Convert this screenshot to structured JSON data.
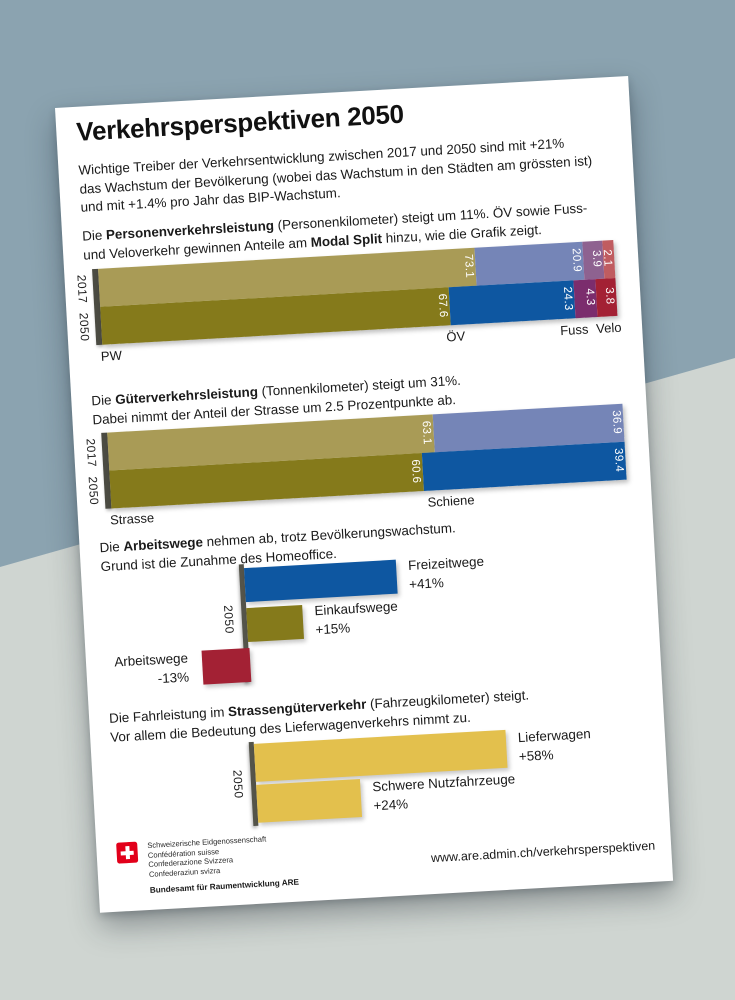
{
  "scene": {
    "background_top_color": "#8ba3b0",
    "background_bottom_color": "#cfd5d1",
    "paper_color": "#ffffff"
  },
  "poster": {
    "title": "Verkehrsperspektiven 2050",
    "intro_lines": [
      "Wichtige Treiber der Verkehrsentwicklung zwischen 2017 und 2050 sind mit +21%",
      "das Wachstum der Bevölkerung (wobei das Wachstum in den Städten am grössten ist)",
      "und mit +1.4% pro Jahr das BIP-Wachstum."
    ],
    "sections": [
      {
        "lines": [
          [
            {
              "t": "Die ",
              "b": false
            },
            {
              "t": "Personenverkehrsleistung",
              "b": true
            },
            {
              "t": " (Personenkilometer) steigt um 11%. ÖV sowie Fuss-",
              "b": false
            }
          ],
          [
            {
              "t": "und Veloverkehr gewinnen Anteile am ",
              "b": false
            },
            {
              "t": "Modal Split",
              "b": true
            },
            {
              "t": " hinzu, wie die Grafik zeigt.",
              "b": false
            }
          ]
        ]
      },
      {
        "lines": [
          [
            {
              "t": "Die ",
              "b": false
            },
            {
              "t": "Güterverkehrsleistung",
              "b": true
            },
            {
              "t": " (Tonnenkilometer) steigt um 31%.",
              "b": false
            }
          ],
          [
            {
              "t": "Dabei nimmt der Anteil der Strasse um 2.5 Prozentpunkte ab.",
              "b": false
            }
          ]
        ]
      },
      {
        "lines": [
          [
            {
              "t": "Die ",
              "b": false
            },
            {
              "t": "Arbeitswege",
              "b": true
            },
            {
              "t": " nehmen ab, trotz Bevölkerungswachstum.",
              "b": false
            }
          ],
          [
            {
              "t": "Grund ist die Zunahme des Homeoffice.",
              "b": false
            }
          ]
        ]
      },
      {
        "lines": [
          [
            {
              "t": "Die Fahrleistung im ",
              "b": false
            },
            {
              "t": "Strassengüterverkehr",
              "b": true
            },
            {
              "t": " (Fahrzeugkilometer) steigt.",
              "b": false
            }
          ],
          [
            {
              "t": "Vor allem die Bedeutung des Lieferwagenverkehrs nimmt zu.",
              "b": false
            }
          ]
        ]
      }
    ],
    "footer": {
      "confederation_lines": [
        "Schweizerische Eidgenossenschaft",
        "Confédération suisse",
        "Confederazione Svizzera",
        "Confederaziun svizra"
      ],
      "office": "Bundesamt für Raumentwicklung ARE",
      "url": "www.are.admin.ch/verkehrsperspektiven",
      "flag_color": "#e2001a"
    }
  },
  "chart_data": [
    {
      "id": "personenverkehr_modal_split",
      "type": "bar",
      "stacked": true,
      "orientation": "horizontal",
      "caption": "Die Personenverkehrsleistung (Personenkilometer) steigt um 11%. ÖV sowie Fuss- und Veloverkehr gewinnen Anteile am Modal Split hinzu, wie die Grafik zeigt.",
      "xlim": [
        0,
        100
      ],
      "categories": [
        "2017",
        "2050"
      ],
      "category_labels": [
        "PW",
        "ÖV",
        "Fuss",
        "Velo"
      ],
      "rows": [
        {
          "year": "2017",
          "segments": [
            {
              "label": "PW",
              "value": 73.1,
              "color": "#a99b56"
            },
            {
              "label": "ÖV",
              "value": 20.9,
              "color": "#7585b7"
            },
            {
              "label": "Fuss",
              "value": 3.9,
              "color": "#8e6290"
            },
            {
              "label": "Velo",
              "value": 2.1,
              "color": "#c05c60"
            }
          ]
        },
        {
          "year": "2050",
          "segments": [
            {
              "label": "PW",
              "value": 67.6,
              "color": "#857a1b"
            },
            {
              "label": "ÖV",
              "value": 24.3,
              "color": "#0e57a1"
            },
            {
              "label": "Fuss",
              "value": 4.3,
              "color": "#7b2d6d"
            },
            {
              "label": "Velo",
              "value": 3.8,
              "color": "#a32134"
            }
          ]
        }
      ]
    },
    {
      "id": "gueterverkehr_modal_split",
      "type": "bar",
      "stacked": true,
      "orientation": "horizontal",
      "caption": "Die Güterverkehrsleistung (Tonnenkilometer) steigt um 31%. Dabei nimmt der Anteil der Strasse um 2.5 Prozentpunkte ab.",
      "xlim": [
        0,
        100
      ],
      "categories": [
        "2017",
        "2050"
      ],
      "category_labels": [
        "Strasse",
        "Schiene"
      ],
      "rows": [
        {
          "year": "2017",
          "segments": [
            {
              "label": "Strasse",
              "value": 63.1,
              "color": "#a99b56"
            },
            {
              "label": "Schiene",
              "value": 36.9,
              "color": "#7585b7"
            }
          ]
        },
        {
          "year": "2050",
          "segments": [
            {
              "label": "Strasse",
              "value": 60.6,
              "color": "#857a1b"
            },
            {
              "label": "Schiene",
              "value": 39.4,
              "color": "#0e57a1"
            }
          ]
        }
      ]
    },
    {
      "id": "wege_entwicklung_2050",
      "type": "bar",
      "orientation": "horizontal",
      "caption": "Die Arbeitswege nehmen ab, trotz Bevölkerungswachstum. Grund ist die Zunahme des Homeoffice.",
      "axis_label": "2050",
      "bars": [
        {
          "label": "Freizeitwege",
          "pct": "+41%",
          "value": 41,
          "color": "#0e57a1",
          "dir": "right"
        },
        {
          "label": "Einkaufswege",
          "pct": "+15%",
          "value": 15,
          "color": "#857a1b",
          "dir": "right"
        },
        {
          "label": "Arbeitswege",
          "pct": "-13%",
          "value": 13,
          "color": "#a32134",
          "dir": "left"
        }
      ]
    },
    {
      "id": "strassengueterverkehr_2050",
      "type": "bar",
      "orientation": "horizontal",
      "caption": "Die Fahrleistung im Strassengüterverkehr (Fahrzeugkilometer) steigt. Vor allem die Bedeutung des Lieferwagenverkehrs nimmt zu.",
      "axis_label": "2050",
      "bars": [
        {
          "label": "Lieferwagen",
          "pct": "+58%",
          "value": 58,
          "color": "#e3c04d",
          "dir": "right"
        },
        {
          "label": "Schwere Nutzfahrzeuge",
          "pct": "+24%",
          "value": 24,
          "color": "#e3c04d",
          "dir": "right"
        }
      ]
    }
  ]
}
